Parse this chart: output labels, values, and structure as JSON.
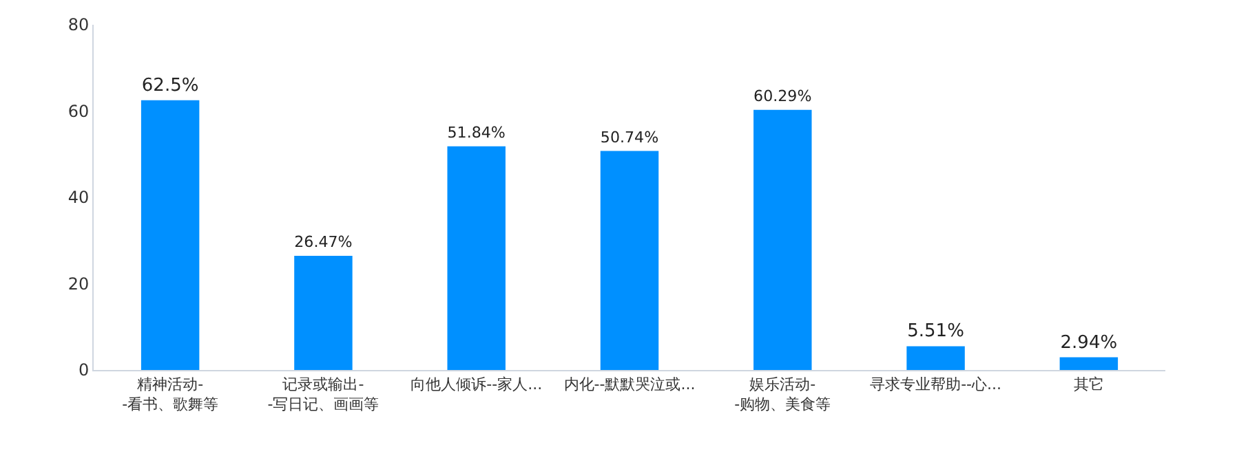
{
  "chart_data": {
    "type": "bar",
    "categories": [
      "精神活动-\n-看书、歌舞等",
      "记录或输出-\n-写日记、画画等",
      "向他人倾诉--家人...",
      "内化--默默哭泣或...",
      "娱乐活动-\n-购物、美食等",
      "寻求专业帮助--心...",
      "其它"
    ],
    "values": [
      62.5,
      26.47,
      51.84,
      50.74,
      60.29,
      5.51,
      2.94
    ],
    "value_labels": [
      "62.5%",
      "26.47%",
      "51.84%",
      "50.74%",
      "60.29%",
      "5.51%",
      "2.94%"
    ],
    "color": "#0090ff",
    "ylim": [
      0,
      80
    ],
    "yticks": [
      0,
      20,
      40,
      60,
      80
    ],
    "grid": false,
    "legend": false
  }
}
